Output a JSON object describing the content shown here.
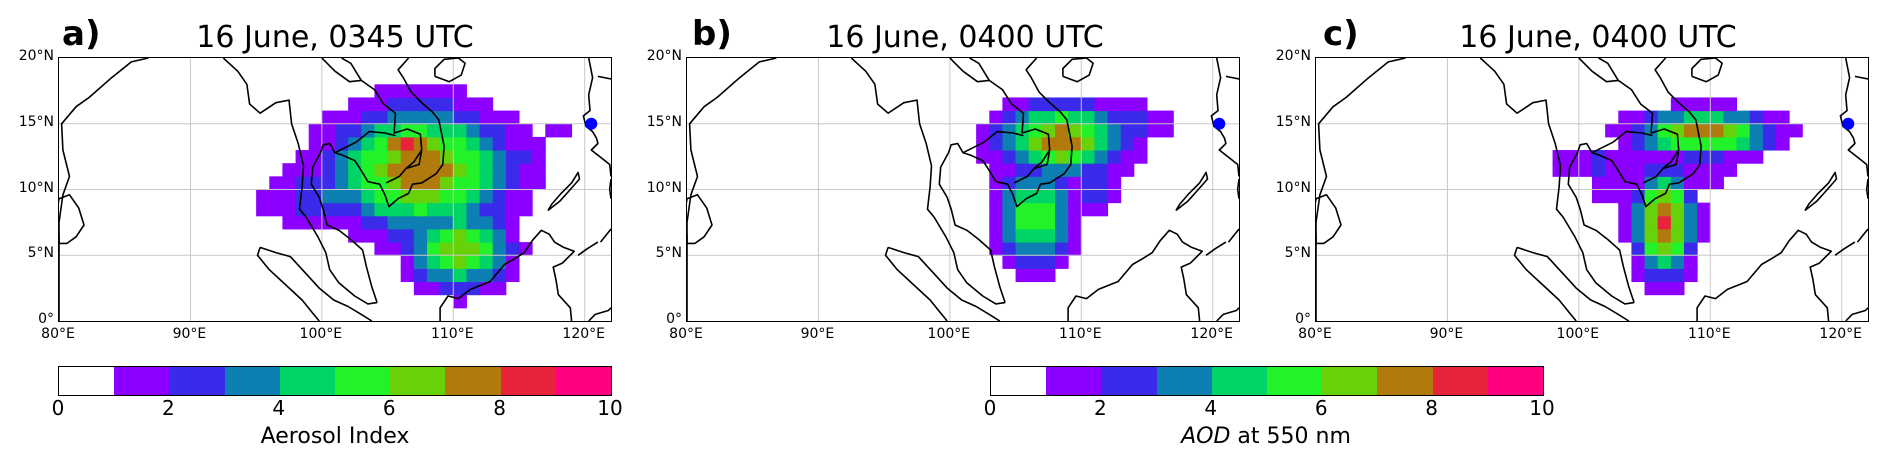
{
  "panels": [
    {
      "letter": "a)",
      "title": "16 June, 0345 UTC"
    },
    {
      "letter": "b)",
      "title": "16 June, 0400 UTC"
    },
    {
      "letter": "c)",
      "title": "16 June, 0400 UTC"
    }
  ],
  "lat_ticks": [
    "20°N",
    "15°N",
    "10°N",
    "5°N",
    "0°"
  ],
  "lon_ticks": [
    "80°E",
    "90°E",
    "100°E",
    "110°E",
    "120°E"
  ],
  "colorbars": [
    {
      "label": "Aerosol Index",
      "ticks": [
        "0",
        "2",
        "4",
        "6",
        "8",
        "10"
      ]
    },
    {
      "label_italic": "AOD",
      "label_rest": " at 550 nm",
      "ticks": [
        "0",
        "2",
        "4",
        "6",
        "8",
        "10"
      ]
    }
  ],
  "colormap": [
    "#ffffff",
    "#8b00ff",
    "#3a2bea",
    "#0e7fb3",
    "#00d466",
    "#22f22a",
    "#67d10a",
    "#b07a0d",
    "#e8243a",
    "#ff0080"
  ],
  "site_marker_color": "#0000ff",
  "chart_data": {
    "type": "heatmap",
    "note_units": "lon (°E), lat (°N)",
    "lon_range": [
      80,
      122
    ],
    "lat_range": [
      0,
      20
    ],
    "value_range": [
      0,
      10
    ],
    "site": {
      "lon": 120.5,
      "lat": 15.0
    }
  }
}
